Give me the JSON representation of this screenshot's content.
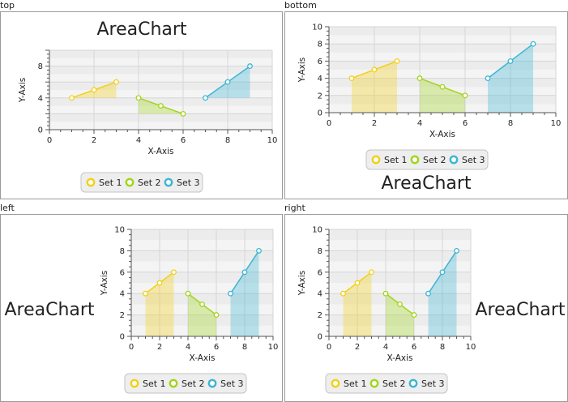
{
  "chart_data": [
    {
      "panel": "top",
      "type": "area",
      "title": "AreaChart",
      "title_side": "top",
      "xlabel": "X-Axis",
      "ylabel": "Y-Axis",
      "xlim": [
        0,
        10
      ],
      "ylim": [
        0,
        10
      ],
      "x_ticks": [
        0,
        2,
        4,
        6,
        8,
        10
      ],
      "y_ticks": [
        0,
        4,
        8
      ],
      "grid": true,
      "legend": "bottom",
      "series": [
        {
          "name": "Set 1",
          "color": "#f3d016",
          "points": [
            [
              1,
              4
            ],
            [
              2,
              5
            ],
            [
              3,
              6
            ]
          ]
        },
        {
          "name": "Set 2",
          "color": "#a2d41a",
          "points": [
            [
              4,
              4
            ],
            [
              5,
              3
            ],
            [
              6,
              2
            ]
          ]
        },
        {
          "name": "Set 3",
          "color": "#3cb5d5",
          "points": [
            [
              7,
              4
            ],
            [
              8,
              6
            ],
            [
              9,
              8
            ]
          ]
        }
      ]
    },
    {
      "panel": "bottom",
      "type": "area",
      "title": "AreaChart",
      "title_side": "bottom",
      "xlabel": "X-Axis",
      "ylabel": "Y-Axis",
      "xlim": [
        0,
        10
      ],
      "ylim": [
        0,
        10
      ],
      "x_ticks": [
        0,
        2,
        4,
        6,
        8,
        10
      ],
      "y_ticks": [
        0,
        2,
        4,
        6,
        8,
        10
      ],
      "grid": true,
      "legend": "bottom",
      "series": [
        {
          "name": "Set 1",
          "color": "#f3d016",
          "points": [
            [
              1,
              4
            ],
            [
              2,
              5
            ],
            [
              3,
              6
            ]
          ]
        },
        {
          "name": "Set 2",
          "color": "#a2d41a",
          "points": [
            [
              4,
              4
            ],
            [
              5,
              3
            ],
            [
              6,
              2
            ]
          ]
        },
        {
          "name": "Set 3",
          "color": "#3cb5d5",
          "points": [
            [
              7,
              4
            ],
            [
              8,
              6
            ],
            [
              9,
              8
            ]
          ]
        }
      ]
    },
    {
      "panel": "left",
      "type": "area",
      "title": "AreaChart",
      "title_side": "left",
      "xlabel": "X-Axis",
      "ylabel": "Y-Axis",
      "xlim": [
        0,
        10
      ],
      "ylim": [
        0,
        10
      ],
      "x_ticks": [
        0,
        2,
        4,
        6,
        8,
        10
      ],
      "y_ticks": [
        0,
        2,
        4,
        6,
        8,
        10
      ],
      "grid": true,
      "legend": "bottom",
      "series": [
        {
          "name": "Set 1",
          "color": "#f3d016",
          "points": [
            [
              1,
              4
            ],
            [
              2,
              5
            ],
            [
              3,
              6
            ]
          ]
        },
        {
          "name": "Set 2",
          "color": "#a2d41a",
          "points": [
            [
              4,
              4
            ],
            [
              5,
              3
            ],
            [
              6,
              2
            ]
          ]
        },
        {
          "name": "Set 3",
          "color": "#3cb5d5",
          "points": [
            [
              7,
              4
            ],
            [
              8,
              6
            ],
            [
              9,
              8
            ]
          ]
        }
      ]
    },
    {
      "panel": "right",
      "type": "area",
      "title": "AreaChart",
      "title_side": "right",
      "xlabel": "X-Axis",
      "ylabel": "Y-Axis",
      "xlim": [
        0,
        10
      ],
      "ylim": [
        0,
        10
      ],
      "x_ticks": [
        0,
        2,
        4,
        6,
        8,
        10
      ],
      "y_ticks": [
        0,
        2,
        4,
        6,
        8,
        10
      ],
      "grid": true,
      "legend": "bottom",
      "series": [
        {
          "name": "Set 1",
          "color": "#f3d016",
          "points": [
            [
              1,
              4
            ],
            [
              2,
              5
            ],
            [
              3,
              6
            ]
          ]
        },
        {
          "name": "Set 2",
          "color": "#a2d41a",
          "points": [
            [
              4,
              4
            ],
            [
              5,
              3
            ],
            [
              6,
              2
            ]
          ]
        },
        {
          "name": "Set 3",
          "color": "#3cb5d5",
          "points": [
            [
              7,
              4
            ],
            [
              8,
              6
            ],
            [
              9,
              8
            ]
          ]
        }
      ]
    }
  ]
}
